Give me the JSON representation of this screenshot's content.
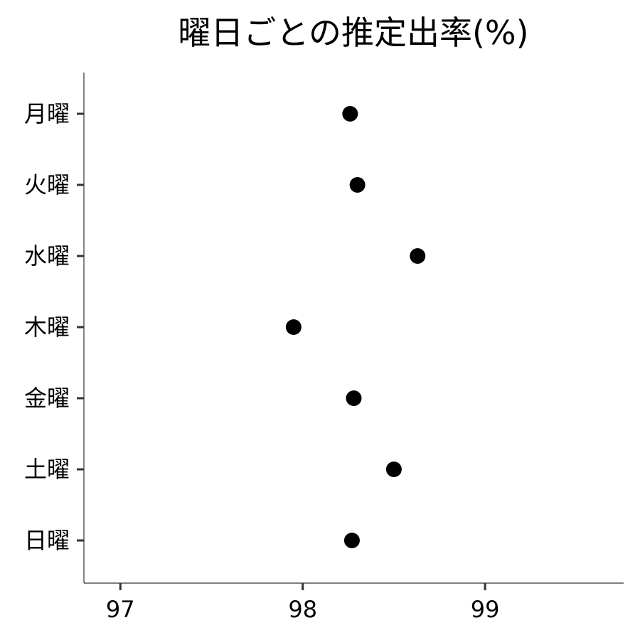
{
  "chart_data": {
    "type": "scatter",
    "title": "曜日ごとの推定出率(%)",
    "xlabel": "",
    "ylabel": "",
    "categories": [
      "月曜",
      "火曜",
      "水曜",
      "木曜",
      "金曜",
      "土曜",
      "日曜"
    ],
    "values": [
      98.26,
      98.3,
      98.63,
      97.95,
      98.28,
      98.5,
      98.27
    ],
    "x_ticks": [
      97,
      98,
      99
    ],
    "xlim": [
      96.8,
      99.76
    ],
    "grid": false,
    "legend": "none",
    "point_color": "#000000"
  }
}
